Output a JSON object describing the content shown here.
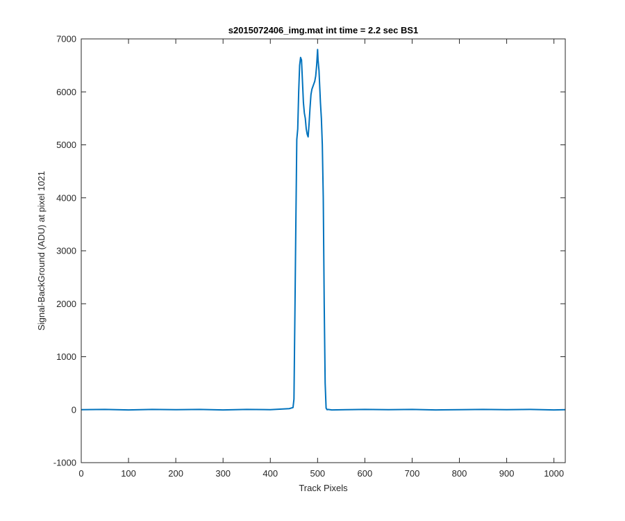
{
  "chart_data": {
    "type": "line",
    "title": "s2015072406_img.mat int time = 2.2 sec   BS1",
    "xlabel": "Track Pixels",
    "ylabel": "Signal-BackGround (ADU) at pixel 1021",
    "xlim": [
      0,
      1024
    ],
    "ylim": [
      -1000,
      7000
    ],
    "xticks": [
      0,
      100,
      200,
      300,
      400,
      500,
      600,
      700,
      800,
      900,
      1000
    ],
    "yticks": [
      -1000,
      0,
      1000,
      2000,
      3000,
      4000,
      5000,
      6000,
      7000
    ],
    "grid": false,
    "series": [
      {
        "color": "#0072BD",
        "x": [
          0,
          50,
          100,
          150,
          200,
          250,
          300,
          350,
          400,
          440,
          448,
          450,
          452,
          454,
          456,
          458,
          460,
          462,
          464,
          466,
          468,
          470,
          472,
          474,
          476,
          478,
          480,
          482,
          484,
          486,
          488,
          490,
          492,
          494,
          496,
          498,
          500,
          501,
          502,
          503,
          504,
          505,
          506,
          508,
          510,
          512,
          514,
          516,
          518,
          520,
          522,
          530,
          560,
          600,
          650,
          700,
          750,
          800,
          850,
          900,
          950,
          1000,
          1024
        ],
        "y": [
          0,
          5,
          -5,
          5,
          0,
          5,
          -5,
          5,
          0,
          20,
          40,
          200,
          1800,
          3500,
          5100,
          5300,
          6000,
          6500,
          6650,
          6600,
          6200,
          5800,
          5600,
          5500,
          5300,
          5200,
          5150,
          5400,
          5700,
          5950,
          6050,
          6100,
          6150,
          6200,
          6300,
          6500,
          6800,
          6600,
          6500,
          6400,
          6200,
          6000,
          5800,
          5500,
          5000,
          4000,
          2000,
          500,
          30,
          0,
          5,
          -5,
          0,
          5,
          0,
          5,
          -5,
          0,
          5,
          0,
          5,
          -5,
          0
        ]
      }
    ]
  }
}
